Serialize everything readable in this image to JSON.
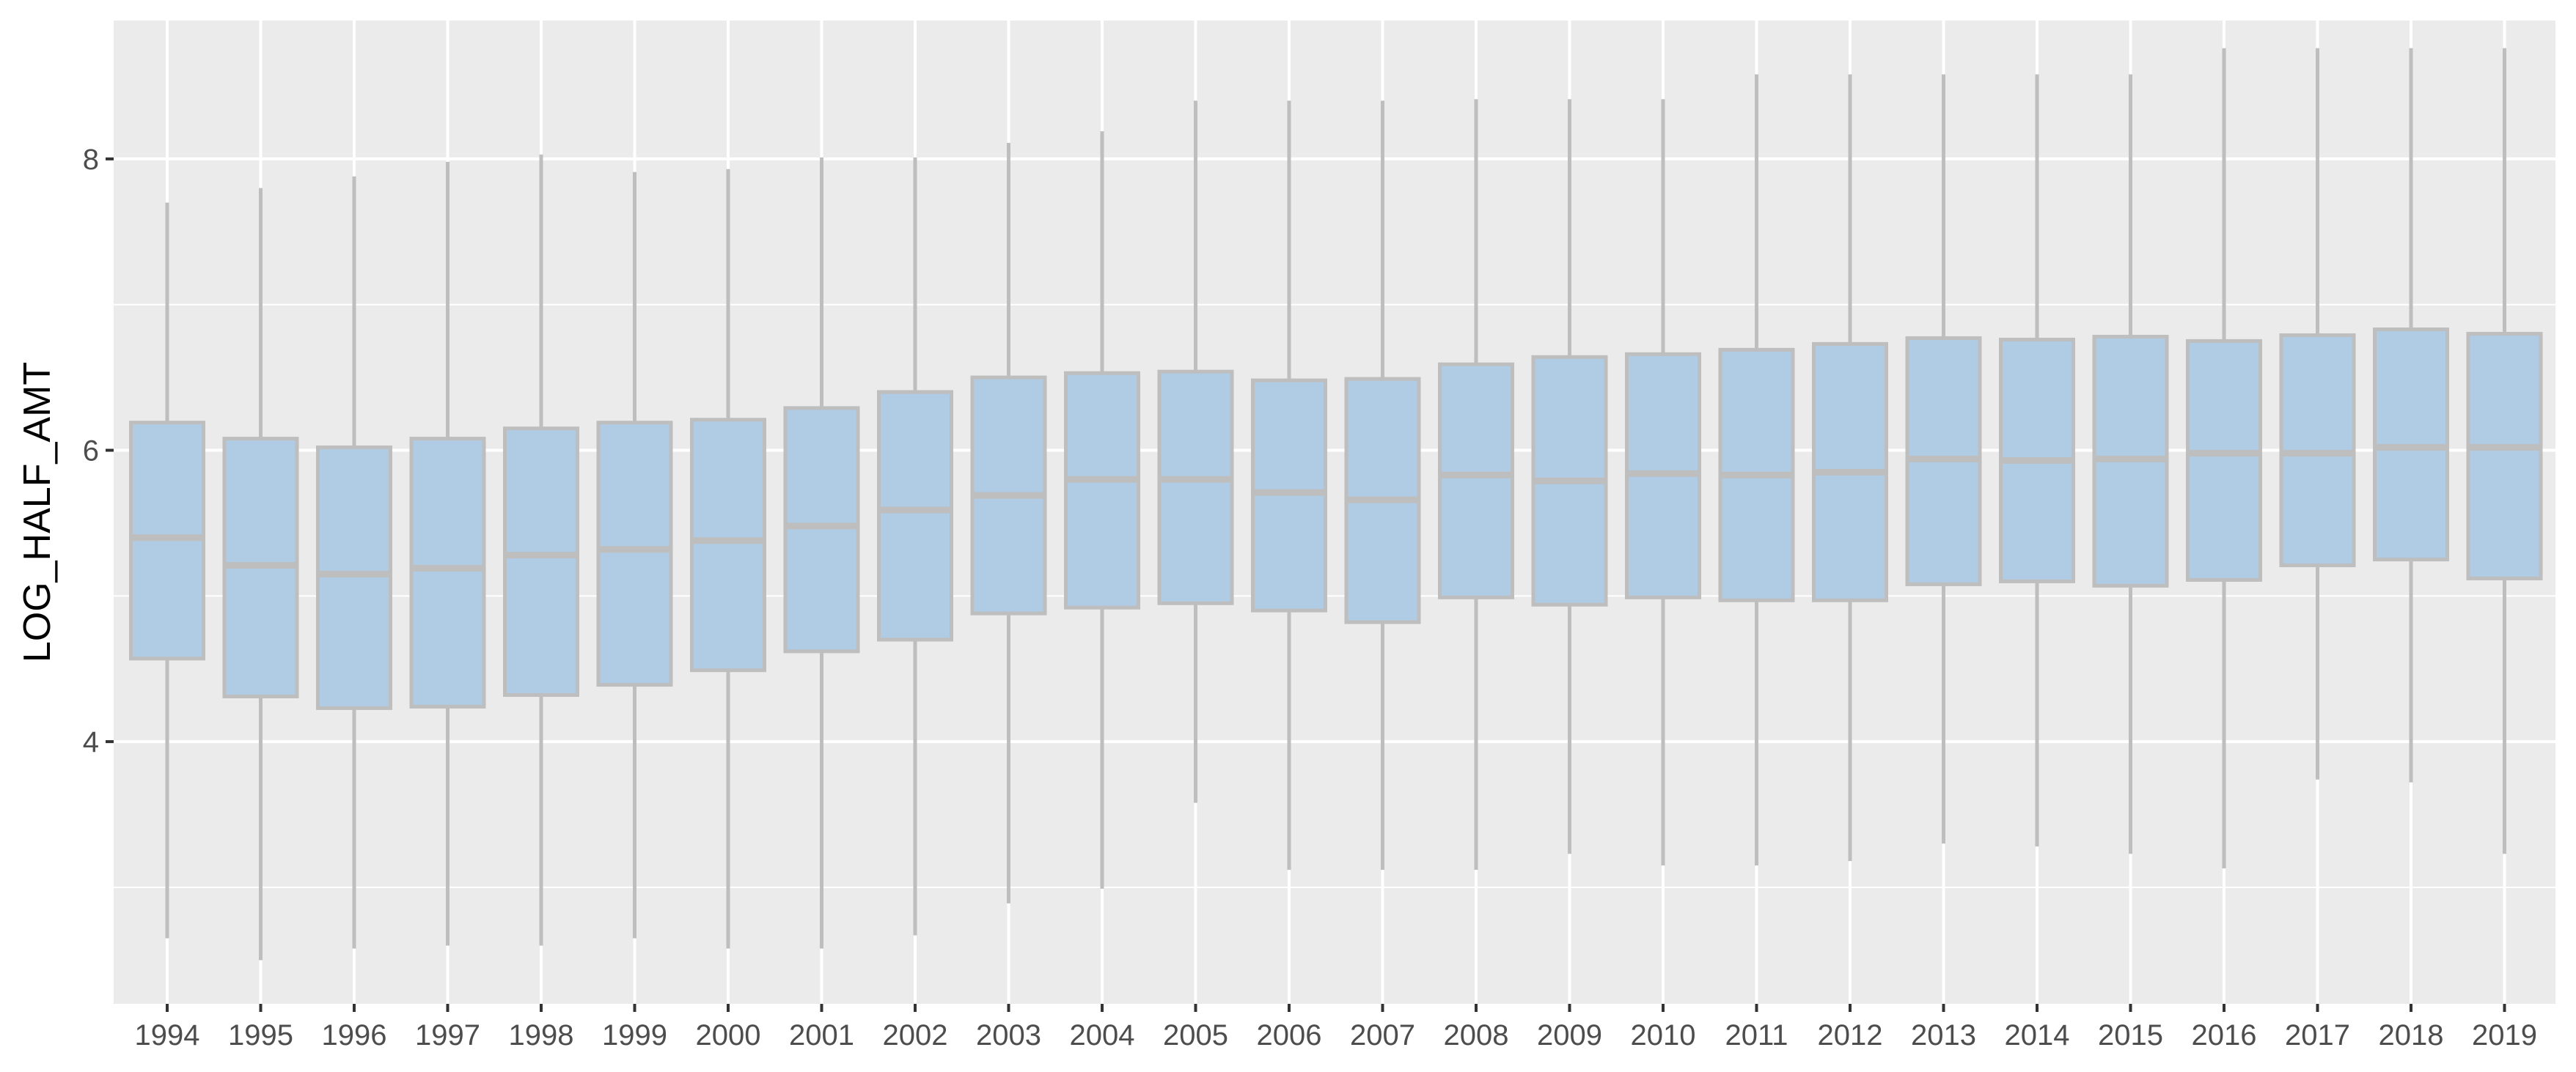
{
  "chart_data": {
    "type": "boxplot",
    "title": "",
    "xlabel": "",
    "ylabel": "LOG_HALF_AMT",
    "ylim": [
      2.2,
      8.95
    ],
    "y_ticks": [
      4,
      6,
      8
    ],
    "y_minor_ticks": [
      3,
      5,
      7
    ],
    "grid": true,
    "legend": "none",
    "colors": {
      "panel": "#EBEBEB",
      "grid": "#FFFFFF",
      "box_fill": "#B0CBE4",
      "box_line": "#BEBEBE",
      "tick": "#333333",
      "tick_label": "#4D4D4D"
    },
    "categories": [
      "1994",
      "1995",
      "1996",
      "1997",
      "1998",
      "1999",
      "2000",
      "2001",
      "2002",
      "2003",
      "2004",
      "2005",
      "2006",
      "2007",
      "2008",
      "2009",
      "2010",
      "2011",
      "2012",
      "2013",
      "2014",
      "2015",
      "2016",
      "2017",
      "2018",
      "2019"
    ],
    "boxes": [
      {
        "min": 2.65,
        "q1": 4.57,
        "median": 5.4,
        "q3": 6.19,
        "max": 7.7
      },
      {
        "min": 2.5,
        "q1": 4.31,
        "median": 5.21,
        "q3": 6.08,
        "max": 7.8
      },
      {
        "min": 2.58,
        "q1": 4.23,
        "median": 5.15,
        "q3": 6.02,
        "max": 7.88
      },
      {
        "min": 2.6,
        "q1": 4.24,
        "median": 5.19,
        "q3": 6.08,
        "max": 7.98
      },
      {
        "min": 2.6,
        "q1": 4.32,
        "median": 5.28,
        "q3": 6.15,
        "max": 8.03
      },
      {
        "min": 2.65,
        "q1": 4.39,
        "median": 5.32,
        "q3": 6.19,
        "max": 7.91
      },
      {
        "min": 2.58,
        "q1": 4.49,
        "median": 5.38,
        "q3": 6.21,
        "max": 7.93
      },
      {
        "min": 2.58,
        "q1": 4.62,
        "median": 5.48,
        "q3": 6.29,
        "max": 8.01
      },
      {
        "min": 2.67,
        "q1": 4.7,
        "median": 5.59,
        "q3": 6.4,
        "max": 8.01
      },
      {
        "min": 2.89,
        "q1": 4.88,
        "median": 5.69,
        "q3": 6.5,
        "max": 8.11
      },
      {
        "min": 2.99,
        "q1": 4.92,
        "median": 5.8,
        "q3": 6.53,
        "max": 8.19
      },
      {
        "min": 3.58,
        "q1": 4.95,
        "median": 5.8,
        "q3": 6.54,
        "max": 8.4
      },
      {
        "min": 3.12,
        "q1": 4.9,
        "median": 5.71,
        "q3": 6.48,
        "max": 8.4
      },
      {
        "min": 3.12,
        "q1": 4.82,
        "median": 5.66,
        "q3": 6.49,
        "max": 8.4
      },
      {
        "min": 3.12,
        "q1": 4.99,
        "median": 5.83,
        "q3": 6.59,
        "max": 8.41
      },
      {
        "min": 3.23,
        "q1": 4.94,
        "median": 5.79,
        "q3": 6.64,
        "max": 8.41
      },
      {
        "min": 3.15,
        "q1": 4.99,
        "median": 5.84,
        "q3": 6.66,
        "max": 8.41
      },
      {
        "min": 3.15,
        "q1": 4.97,
        "median": 5.83,
        "q3": 6.69,
        "max": 8.58
      },
      {
        "min": 3.18,
        "q1": 4.97,
        "median": 5.85,
        "q3": 6.73,
        "max": 8.58
      },
      {
        "min": 3.3,
        "q1": 5.08,
        "median": 5.94,
        "q3": 6.77,
        "max": 8.58
      },
      {
        "min": 3.28,
        "q1": 5.1,
        "median": 5.93,
        "q3": 6.76,
        "max": 8.58
      },
      {
        "min": 3.23,
        "q1": 5.07,
        "median": 5.94,
        "q3": 6.78,
        "max": 8.58
      },
      {
        "min": 3.13,
        "q1": 5.11,
        "median": 5.98,
        "q3": 6.75,
        "max": 8.76
      },
      {
        "min": 3.74,
        "q1": 5.21,
        "median": 5.98,
        "q3": 6.79,
        "max": 8.76
      },
      {
        "min": 3.72,
        "q1": 5.25,
        "median": 6.02,
        "q3": 6.83,
        "max": 8.76
      },
      {
        "min": 3.23,
        "q1": 5.12,
        "median": 6.02,
        "q3": 6.8,
        "max": 8.76
      }
    ]
  }
}
